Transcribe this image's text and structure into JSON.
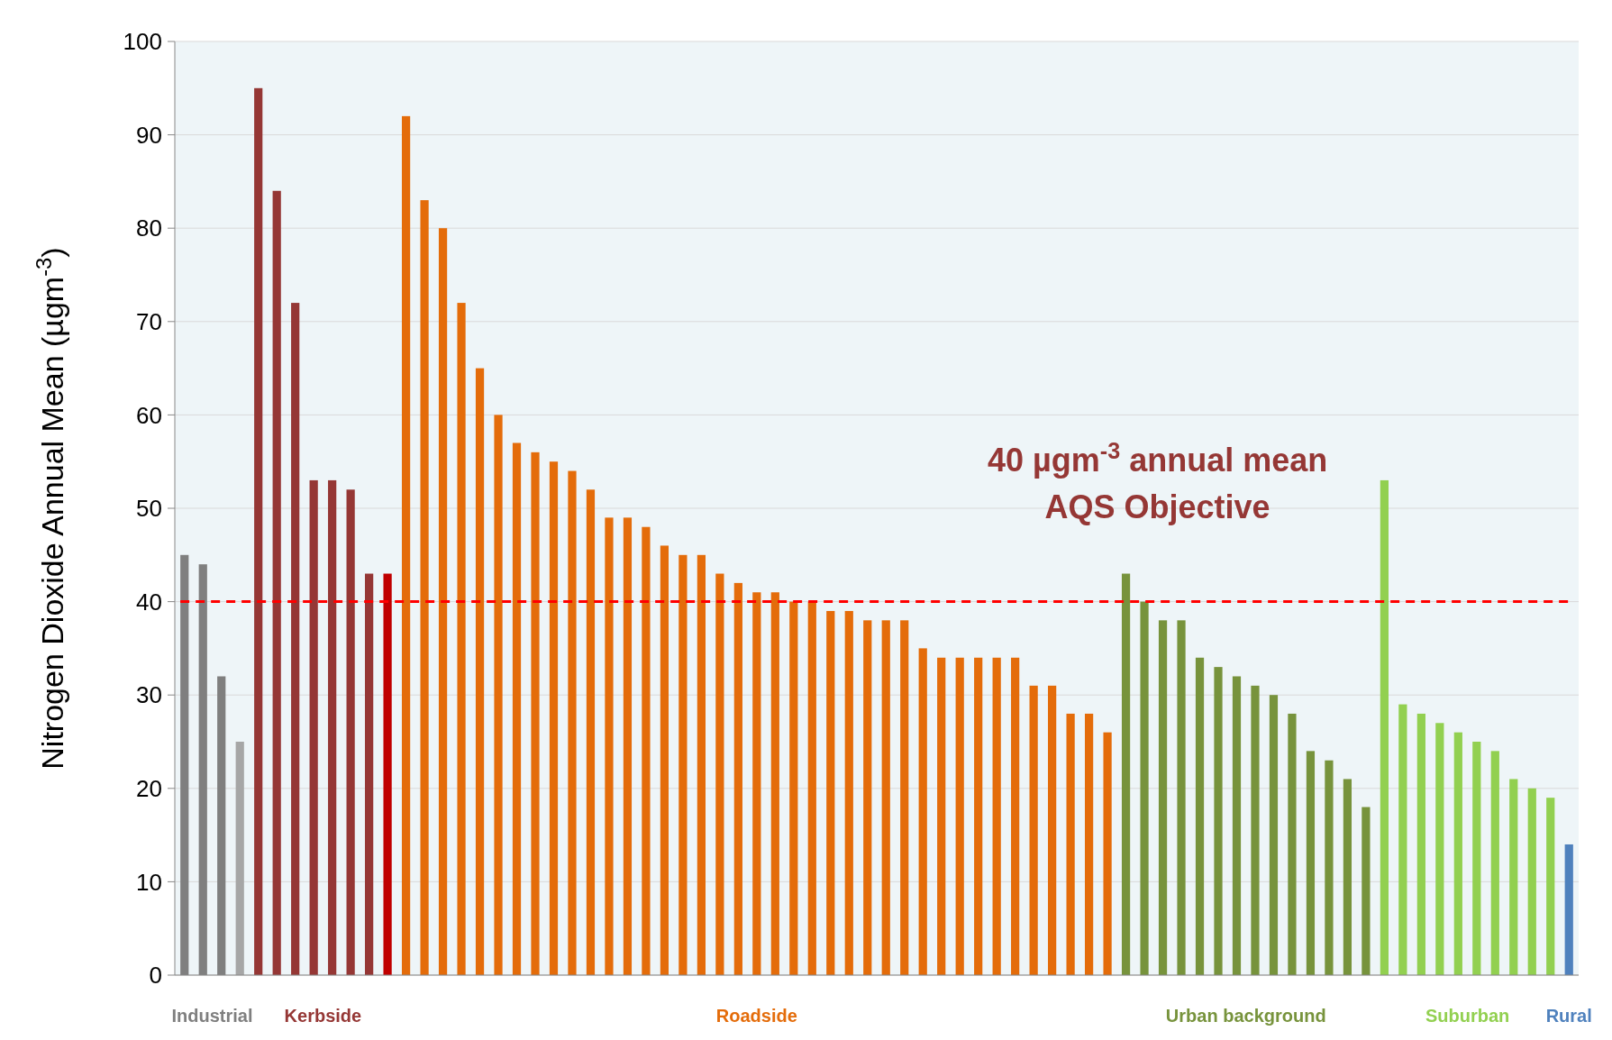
{
  "chart_data": {
    "type": "bar",
    "ylabel": "Nitrogen Dioxide Annual Mean (µgm$^{-3}$)",
    "categories": [
      null,
      null,
      null,
      null,
      null,
      null,
      null,
      null,
      null,
      null,
      null,
      null,
      null,
      null,
      null,
      null,
      null,
      null,
      null,
      null,
      null,
      null,
      null,
      null,
      null,
      null,
      null,
      null,
      null,
      null,
      null,
      null,
      null,
      null,
      null,
      null,
      null,
      null,
      null,
      null,
      null,
      null,
      null,
      null,
      null,
      null,
      null,
      null,
      null,
      null,
      null,
      null,
      null,
      null,
      null,
      null,
      null,
      null,
      null,
      null,
      null,
      null,
      null,
      null,
      null,
      null,
      null,
      null,
      null,
      null,
      null,
      null,
      null,
      null,
      null,
      null
    ],
    "series": [
      {
        "name": "Industrial",
        "color": "#7f7f7f",
        "colors": [
          "#7f7f7f",
          "#7f7f7f",
          "#7f7f7f",
          "#a6a6a6",
          null,
          null,
          null,
          null,
          null,
          null,
          null,
          null,
          null,
          null,
          null,
          null,
          null,
          null,
          null,
          null,
          null,
          null,
          null,
          null,
          null,
          null,
          null,
          null,
          null,
          null,
          null,
          null,
          null,
          null,
          null,
          null,
          null,
          null,
          null,
          null,
          null,
          null,
          null,
          null,
          null,
          null,
          null,
          null,
          null,
          null,
          null,
          null,
          null,
          null,
          null,
          null,
          null,
          null,
          null,
          null,
          null,
          null,
          null,
          null,
          null,
          null,
          null,
          null,
          null,
          null,
          null,
          null,
          null,
          null,
          null,
          null
        ],
        "values": [
          45,
          44,
          32,
          25,
          null,
          null,
          null,
          null,
          null,
          null,
          null,
          null,
          null,
          null,
          null,
          null,
          null,
          null,
          null,
          null,
          null,
          null,
          null,
          null,
          null,
          null,
          null,
          null,
          null,
          null,
          null,
          null,
          null,
          null,
          null,
          null,
          null,
          null,
          null,
          null,
          null,
          null,
          null,
          null,
          null,
          null,
          null,
          null,
          null,
          null,
          null,
          null,
          null,
          null,
          null,
          null,
          null,
          null,
          null,
          null,
          null,
          null,
          null,
          null,
          null,
          null,
          null,
          null,
          null,
          null,
          null,
          null,
          null,
          null,
          null,
          null
        ]
      },
      {
        "name": "Kerbside",
        "color": "#953735",
        "colors": [
          null,
          null,
          null,
          null,
          "#953735",
          "#953735",
          "#953735",
          "#953735",
          "#953735",
          "#953735",
          "#953735",
          "#c00000",
          null,
          null,
          null,
          null,
          null,
          null,
          null,
          null,
          null,
          null,
          null,
          null,
          null,
          null,
          null,
          null,
          null,
          null,
          null,
          null,
          null,
          null,
          null,
          null,
          null,
          null,
          null,
          null,
          null,
          null,
          null,
          null,
          null,
          null,
          null,
          null,
          null,
          null,
          null,
          null,
          null,
          null,
          null,
          null,
          null,
          null,
          null,
          null,
          null,
          null,
          null,
          null,
          null,
          null,
          null,
          null,
          null,
          null,
          null,
          null,
          null,
          null,
          null,
          null
        ],
        "values": [
          null,
          null,
          null,
          null,
          95,
          84,
          72,
          53,
          53,
          52,
          43,
          43,
          null,
          null,
          null,
          null,
          null,
          null,
          null,
          null,
          null,
          null,
          null,
          null,
          null,
          null,
          null,
          null,
          null,
          null,
          null,
          null,
          null,
          null,
          null,
          null,
          null,
          null,
          null,
          null,
          null,
          null,
          null,
          null,
          null,
          null,
          null,
          null,
          null,
          null,
          null,
          null,
          null,
          null,
          null,
          null,
          null,
          null,
          null,
          null,
          null,
          null,
          null,
          null,
          null,
          null,
          null,
          null,
          null,
          null,
          null,
          null,
          null,
          null,
          null,
          null
        ]
      },
      {
        "name": "Roadside",
        "color": "#e46c0a",
        "values": [
          null,
          null,
          null,
          null,
          null,
          null,
          null,
          null,
          null,
          null,
          null,
          null,
          92,
          83,
          80,
          72,
          65,
          60,
          57,
          56,
          55,
          54,
          52,
          49,
          49,
          48,
          46,
          45,
          45,
          43,
          42,
          41,
          41,
          40,
          40,
          39,
          39,
          38,
          38,
          38,
          35,
          34,
          34,
          34,
          34,
          34,
          31,
          31,
          28,
          28,
          26,
          null,
          null,
          null,
          null,
          null,
          null,
          null,
          null,
          null,
          null,
          null,
          null,
          null,
          null,
          null,
          null,
          null,
          null,
          null,
          null,
          null,
          null,
          null,
          null,
          null
        ]
      },
      {
        "name": "Urban background",
        "color": "#77933c",
        "values": [
          null,
          null,
          null,
          null,
          null,
          null,
          null,
          null,
          null,
          null,
          null,
          null,
          null,
          null,
          null,
          null,
          null,
          null,
          null,
          null,
          null,
          null,
          null,
          null,
          null,
          null,
          null,
          null,
          null,
          null,
          null,
          null,
          null,
          null,
          null,
          null,
          null,
          null,
          null,
          null,
          null,
          null,
          null,
          null,
          null,
          null,
          null,
          null,
          null,
          null,
          null,
          43,
          40,
          38,
          38,
          34,
          33,
          32,
          31,
          30,
          28,
          24,
          23,
          21,
          18,
          null,
          null,
          null,
          null,
          null,
          null,
          null,
          null,
          null,
          null,
          null
        ]
      },
      {
        "name": "Suburban",
        "color": "#92d050",
        "values": [
          null,
          null,
          null,
          null,
          null,
          null,
          null,
          null,
          null,
          null,
          null,
          null,
          null,
          null,
          null,
          null,
          null,
          null,
          null,
          null,
          null,
          null,
          null,
          null,
          null,
          null,
          null,
          null,
          null,
          null,
          null,
          null,
          null,
          null,
          null,
          null,
          null,
          null,
          null,
          null,
          null,
          null,
          null,
          null,
          null,
          null,
          null,
          null,
          null,
          null,
          null,
          null,
          null,
          null,
          null,
          null,
          null,
          null,
          null,
          null,
          null,
          null,
          null,
          null,
          null,
          53,
          29,
          28,
          27,
          26,
          25,
          24,
          21,
          20,
          19,
          null
        ]
      },
      {
        "name": "Rural",
        "color": "#4f81bd",
        "values": [
          null,
          null,
          null,
          null,
          null,
          null,
          null,
          null,
          null,
          null,
          null,
          null,
          null,
          null,
          null,
          null,
          null,
          null,
          null,
          null,
          null,
          null,
          null,
          null,
          null,
          null,
          null,
          null,
          null,
          null,
          null,
          null,
          null,
          null,
          null,
          null,
          null,
          null,
          null,
          null,
          null,
          null,
          null,
          null,
          null,
          null,
          null,
          null,
          null,
          null,
          null,
          null,
          null,
          null,
          null,
          null,
          null,
          null,
          null,
          null,
          null,
          null,
          null,
          null,
          null,
          null,
          null,
          null,
          null,
          null,
          null,
          null,
          null,
          null,
          null,
          14
        ]
      }
    ],
    "ylim": [
      0,
      100
    ],
    "yticks": [
      0,
      10,
      20,
      30,
      40,
      50,
      60,
      70,
      80,
      90,
      100
    ],
    "grid": "y",
    "ref_lines": [
      {
        "axis": "y",
        "value": 40,
        "label": "40 µgm$^{-3}$ annual mean\nAQS Objective",
        "color": "#ff0000",
        "line_style": "dashed"
      }
    ]
  }
}
